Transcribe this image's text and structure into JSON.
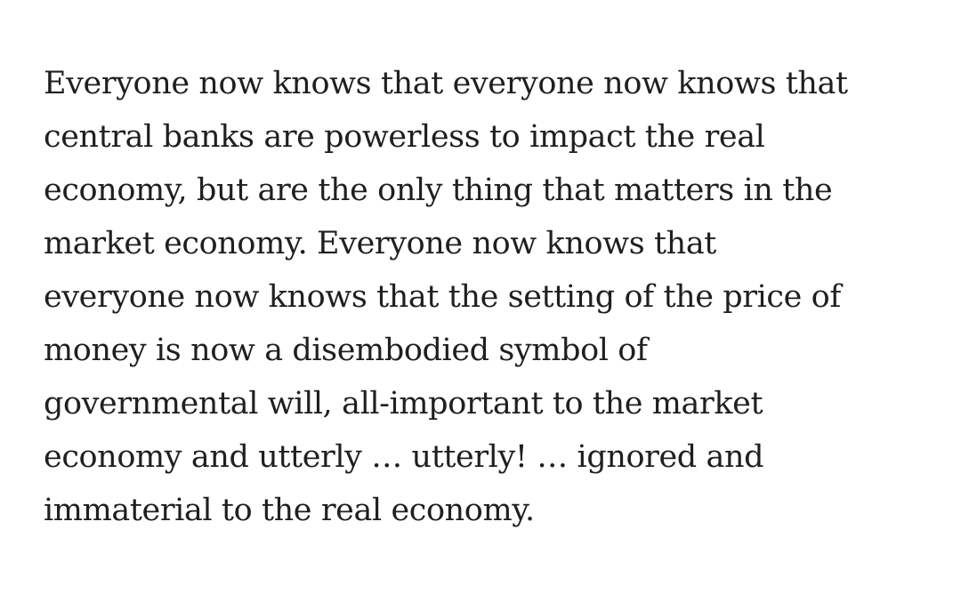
{
  "article": {
    "paragraphs": [
      {
        "lines": [
          "Everyone now knows that everyone now knows that",
          "central banks are powerless to impact the real",
          "economy, but are the only thing that matters in the",
          "market economy. Everyone now knows that",
          "everyone now knows that the setting of the price of",
          "money is now a disembodied symbol of",
          "governmental will, all-important to the market",
          "economy and utterly … utterly! … ignored and",
          "immaterial to the real economy."
        ]
      }
    ]
  }
}
